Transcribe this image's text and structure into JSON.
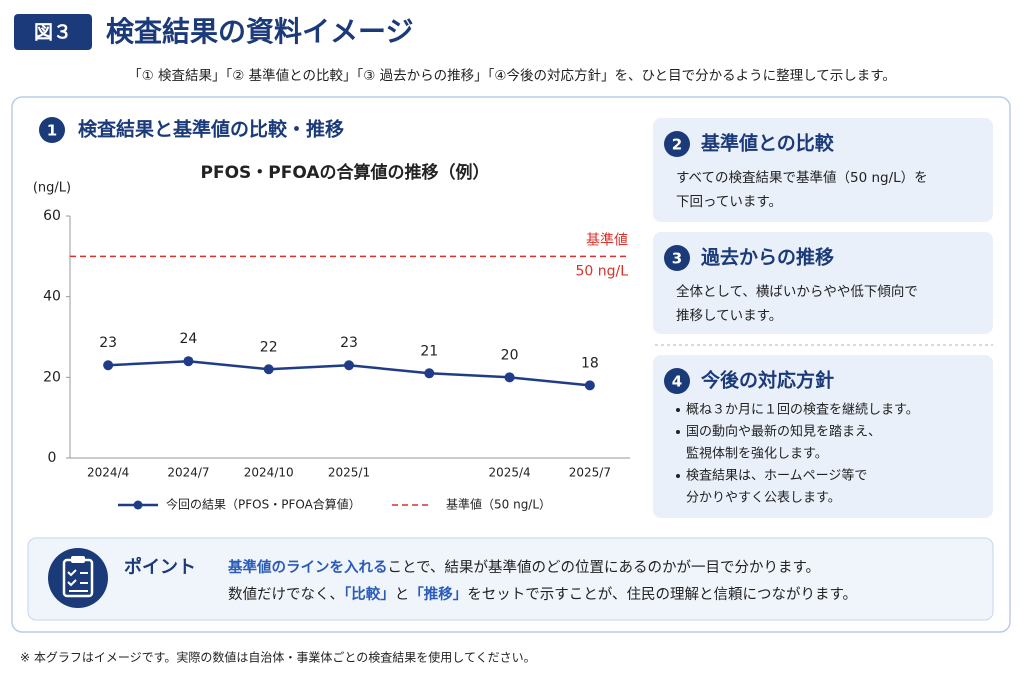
{
  "header": {
    "badge": "図３",
    "title": "検査結果の資料イメージ",
    "subtitle": "「① 検査結果」「② 基準値との比較」「③ 過去からの推移」「④今後の対応方針」を、ひと目で分かるように整理して示します。"
  },
  "section1": {
    "number": "1",
    "title": "検査結果と基準値の比較・推移"
  },
  "chart_data": {
    "type": "line",
    "title": "PFOS・PFOAの合算値の推移（例）",
    "y_label": "(ng/L)",
    "categories": [
      "2024/4",
      "2024/7",
      "2024/10",
      "2025/1",
      null,
      "2025/4",
      "2025/7"
    ],
    "series": [
      {
        "name": "今回の結果（PFOS・PFOA合算値）",
        "color": "#1f3c88",
        "values": [
          23,
          24,
          22,
          23,
          21,
          20,
          18
        ]
      }
    ],
    "reference": {
      "value": 50,
      "labels": [
        "基準値",
        "50 ng/L"
      ],
      "legend": "基準値（50 ng/L）",
      "color": "#d9312b"
    },
    "ylim": [
      0,
      60
    ],
    "yticks": [
      0,
      20,
      40,
      60
    ]
  },
  "panels": [
    {
      "number": "2",
      "title": "基準値との比較",
      "lines": [
        "すべての検査結果で基準値（50 ng/L）を",
        "下回っています。"
      ]
    },
    {
      "number": "3",
      "title": "過去からの推移",
      "lines": [
        "全体として、横ばいからやや低下傾向で",
        "推移しています。"
      ]
    },
    {
      "number": "4",
      "title": "今後の対応方針",
      "bullets": [
        [
          "概ね３か月に１回の検査を継続します。"
        ],
        [
          "国の動向や最新の知見を踏まえ、",
          "監視体制を強化します。"
        ],
        [
          "検査結果は、ホームページ等で",
          "分かりやすく公表します。"
        ]
      ]
    }
  ],
  "point": {
    "title": "ポイント",
    "lines": [
      [
        {
          "text": "基準値のラインを入れる",
          "emphasis": true
        },
        {
          "text": "ことで、結果が基準値のどの位置にあるのかが一目で分かります。",
          "emphasis": false
        }
      ],
      [
        {
          "text": "数値だけでなく、",
          "emphasis": false
        },
        {
          "text": "「比較」",
          "emphasis": true
        },
        {
          "text": "と",
          "emphasis": false
        },
        {
          "text": "「推移」",
          "emphasis": true
        },
        {
          "text": "をセットで示すことが、住民の理解と信頼につながります。",
          "emphasis": false
        }
      ]
    ]
  },
  "footnote": "※ 本グラフはイメージです。実際の数値は自治体・事業体ごとの検査結果を使用してください。"
}
